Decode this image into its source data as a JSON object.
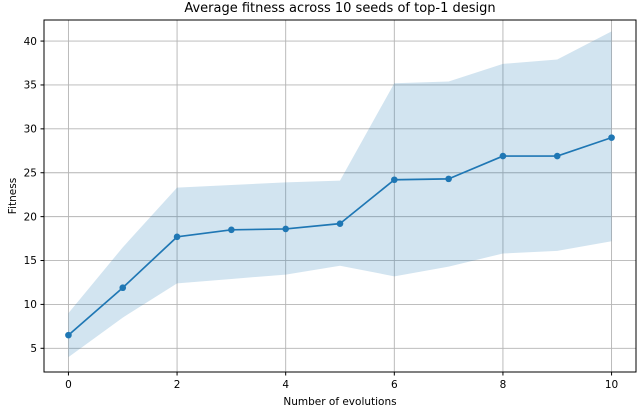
{
  "chart_data": {
    "type": "line",
    "title": "Average fitness across 10 seeds of top-1 design",
    "xlabel": "Number of evolutions",
    "ylabel": "Fitness",
    "x": [
      0,
      1,
      2,
      3,
      4,
      5,
      6,
      7,
      8,
      9,
      10
    ],
    "values": [
      6.5,
      11.9,
      17.7,
      18.5,
      18.6,
      19.2,
      24.2,
      24.3,
      26.9,
      26.9,
      29.0
    ],
    "band": {
      "lower": [
        4.0,
        8.5,
        12.4,
        12.9,
        13.4,
        14.4,
        13.2,
        14.3,
        15.8,
        16.1,
        17.2
      ],
      "upper": [
        9.0,
        16.5,
        23.3,
        23.6,
        23.9,
        24.1,
        35.2,
        35.4,
        37.4,
        37.9,
        41.1
      ]
    },
    "xticks": [
      0,
      2,
      4,
      6,
      8,
      10
    ],
    "yticks": [
      5,
      10,
      15,
      20,
      25,
      30,
      35,
      40
    ],
    "xlim": [
      -0.45,
      10.45
    ],
    "ylim": [
      2.3,
      42.4
    ],
    "grid": true,
    "legend_position": "none",
    "marker": "o",
    "colors": {
      "line": "#1f77b4",
      "band": "#1f77b4",
      "grid": "#b4b4b4",
      "spine": "#000000",
      "text": "#000000"
    },
    "band_opacity": 0.2
  }
}
